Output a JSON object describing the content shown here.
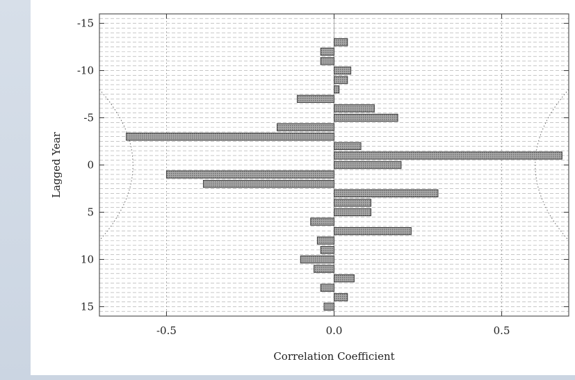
{
  "chart_data": {
    "type": "bar",
    "orientation": "horizontal",
    "xlabel": "Correlation Coefficient",
    "ylabel": "Lagged Year",
    "xlim": [
      -0.7,
      0.7
    ],
    "ylim": [
      -16,
      16
    ],
    "y_inverted": true,
    "x_ticks": [
      {
        "value": -0.5,
        "label": "-0.5"
      },
      {
        "value": 0.0,
        "label": "0.0"
      },
      {
        "value": 0.5,
        "label": "0.5"
      }
    ],
    "y_ticks": [
      {
        "value": -15,
        "label": "-15"
      },
      {
        "value": -10,
        "label": "-10"
      },
      {
        "value": -5,
        "label": "-5"
      },
      {
        "value": 0,
        "label": "0"
      },
      {
        "value": 5,
        "label": "5"
      },
      {
        "value": 10,
        "label": "10"
      },
      {
        "value": 15,
        "label": "15"
      }
    ],
    "grid": "horizontal dashed",
    "categories": [
      -13,
      -12,
      -11,
      -10,
      -9,
      -8,
      -7,
      -6,
      -5,
      -4,
      -3,
      -2,
      -1,
      0,
      1,
      2,
      3,
      4,
      5,
      6,
      7,
      8,
      9,
      10,
      11,
      12,
      13,
      14,
      15
    ],
    "values": [
      0.04,
      -0.04,
      -0.04,
      0.05,
      0.04,
      0.015,
      -0.11,
      0.12,
      0.19,
      -0.17,
      -0.62,
      0.08,
      0.68,
      0.2,
      -0.5,
      -0.39,
      0.31,
      0.11,
      0.11,
      -0.07,
      0.23,
      -0.05,
      -0.04,
      -0.1,
      -0.06,
      0.06,
      -0.04,
      0.04,
      -0.03
    ],
    "significance_curve": {
      "style": "dotted",
      "points": [
        [
          0.7,
          -8
        ],
        [
          0.5,
          0
        ],
        [
          0.7,
          8
        ]
      ]
    },
    "colors": {
      "bar_fill": "#9a9a9a",
      "bar_stroke": "#3a3a3a",
      "grid": "#8f8f8f",
      "frame": "#555555"
    }
  }
}
